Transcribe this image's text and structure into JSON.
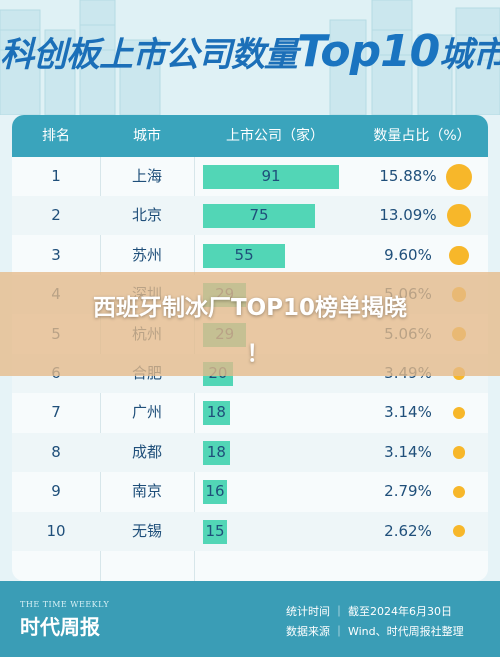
{
  "headline": {
    "prefix": "科创板上市公司数量",
    "top": "Top10",
    "suffix": "城市"
  },
  "table": {
    "headers": [
      "排名",
      "城市",
      "上市公司（家）",
      "数量占比（%）"
    ]
  },
  "chart_data": {
    "type": "bar",
    "categories": [
      "上海",
      "北京",
      "苏州",
      "深圳",
      "杭州",
      "合肥",
      "广州",
      "成都",
      "南京",
      "无锡"
    ],
    "ranks": [
      "1",
      "2",
      "3",
      "4",
      "5",
      "6",
      "7",
      "8",
      "9",
      "10"
    ],
    "values": [
      91,
      75,
      55,
      29,
      29,
      20,
      18,
      18,
      16,
      15
    ],
    "shares": [
      "15.88%",
      "13.09%",
      "9.60%",
      "5.06%",
      "5.06%",
      "3.49%",
      "3.14%",
      "3.14%",
      "2.79%",
      "2.62%"
    ],
    "xlim": [
      0,
      91
    ],
    "colors": {
      "bar": "#52d6b6",
      "dot": "#f7b72a",
      "header": "#3aa4bc"
    }
  },
  "overlay": {
    "title": "西班牙制冰厂TOP10榜单揭晓",
    "bang": "！"
  },
  "footer": {
    "logo_small": "THE TIME WEEKLY",
    "logo_big": "时代周报",
    "line1": "统计时间 ｜ 截至2024年6月30日",
    "line2": "数据来源 ｜ Wind、时代周报社整理"
  }
}
